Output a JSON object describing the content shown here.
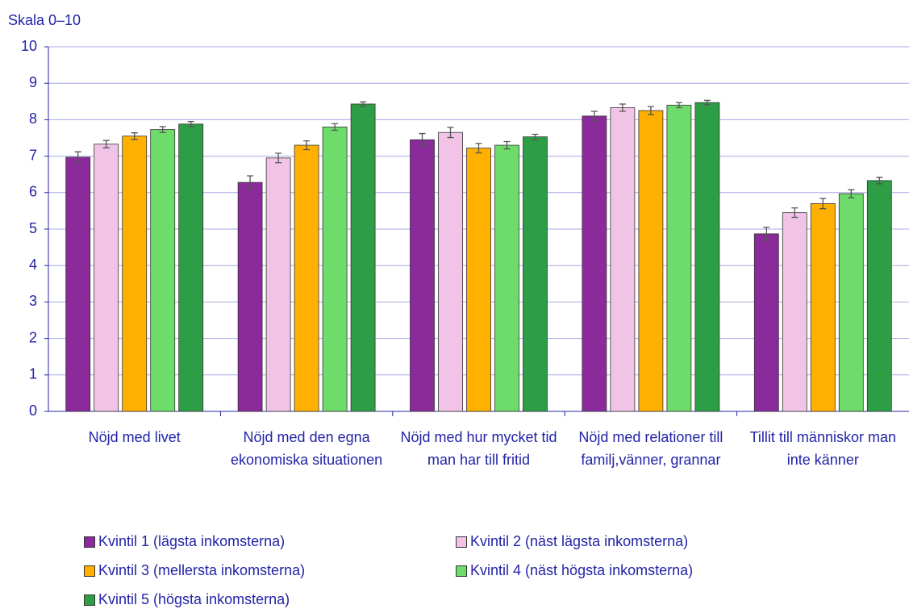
{
  "chart_data": {
    "type": "bar",
    "y_label": "Skala 0–10",
    "categories": [
      "Nöjd med livet",
      "Nöjd med den egna ekonomiska situationen",
      "Nöjd med hur mycket tid man har till fritid",
      "Nöjd med relationer till familj,vänner, grannar",
      "Tillit till människor man inte känner"
    ],
    "series": [
      {
        "name": "Kvintil 1 (lägsta inkomsterna)",
        "color": "#8b2a9b",
        "values": [
          6.97,
          6.28,
          7.45,
          8.1,
          4.87
        ],
        "errors": [
          0.15,
          0.18,
          0.17,
          0.13,
          0.18
        ]
      },
      {
        "name": "Kvintil 2 (näst lägsta inkomsterna)",
        "color": "#f1c4e7",
        "values": [
          7.33,
          6.95,
          7.65,
          8.33,
          5.45
        ],
        "errors": [
          0.1,
          0.13,
          0.14,
          0.1,
          0.13
        ]
      },
      {
        "name": "Kvintil 3 (mellersta inkomsterna)",
        "color": "#ffb000",
        "values": [
          7.55,
          7.3,
          7.22,
          8.25,
          5.7
        ],
        "errors": [
          0.09,
          0.12,
          0.13,
          0.11,
          0.14
        ]
      },
      {
        "name": "Kvintil 4 (näst högsta inkomsterna)",
        "color": "#6ddc6a",
        "values": [
          7.73,
          7.8,
          7.3,
          8.4,
          5.97
        ],
        "errors": [
          0.08,
          0.09,
          0.1,
          0.07,
          0.11
        ]
      },
      {
        "name": "Kvintil 5 (högsta inkomsterna)",
        "color": "#2e9e46",
        "values": [
          7.88,
          8.43,
          7.53,
          8.47,
          6.33
        ],
        "errors": [
          0.07,
          0.06,
          0.07,
          0.06,
          0.09
        ]
      }
    ],
    "ylim": [
      0,
      10
    ],
    "yticks": [
      0,
      1,
      2,
      3,
      4,
      5,
      6,
      7,
      8,
      9,
      10
    ],
    "grid": true,
    "legend": "bottom"
  }
}
